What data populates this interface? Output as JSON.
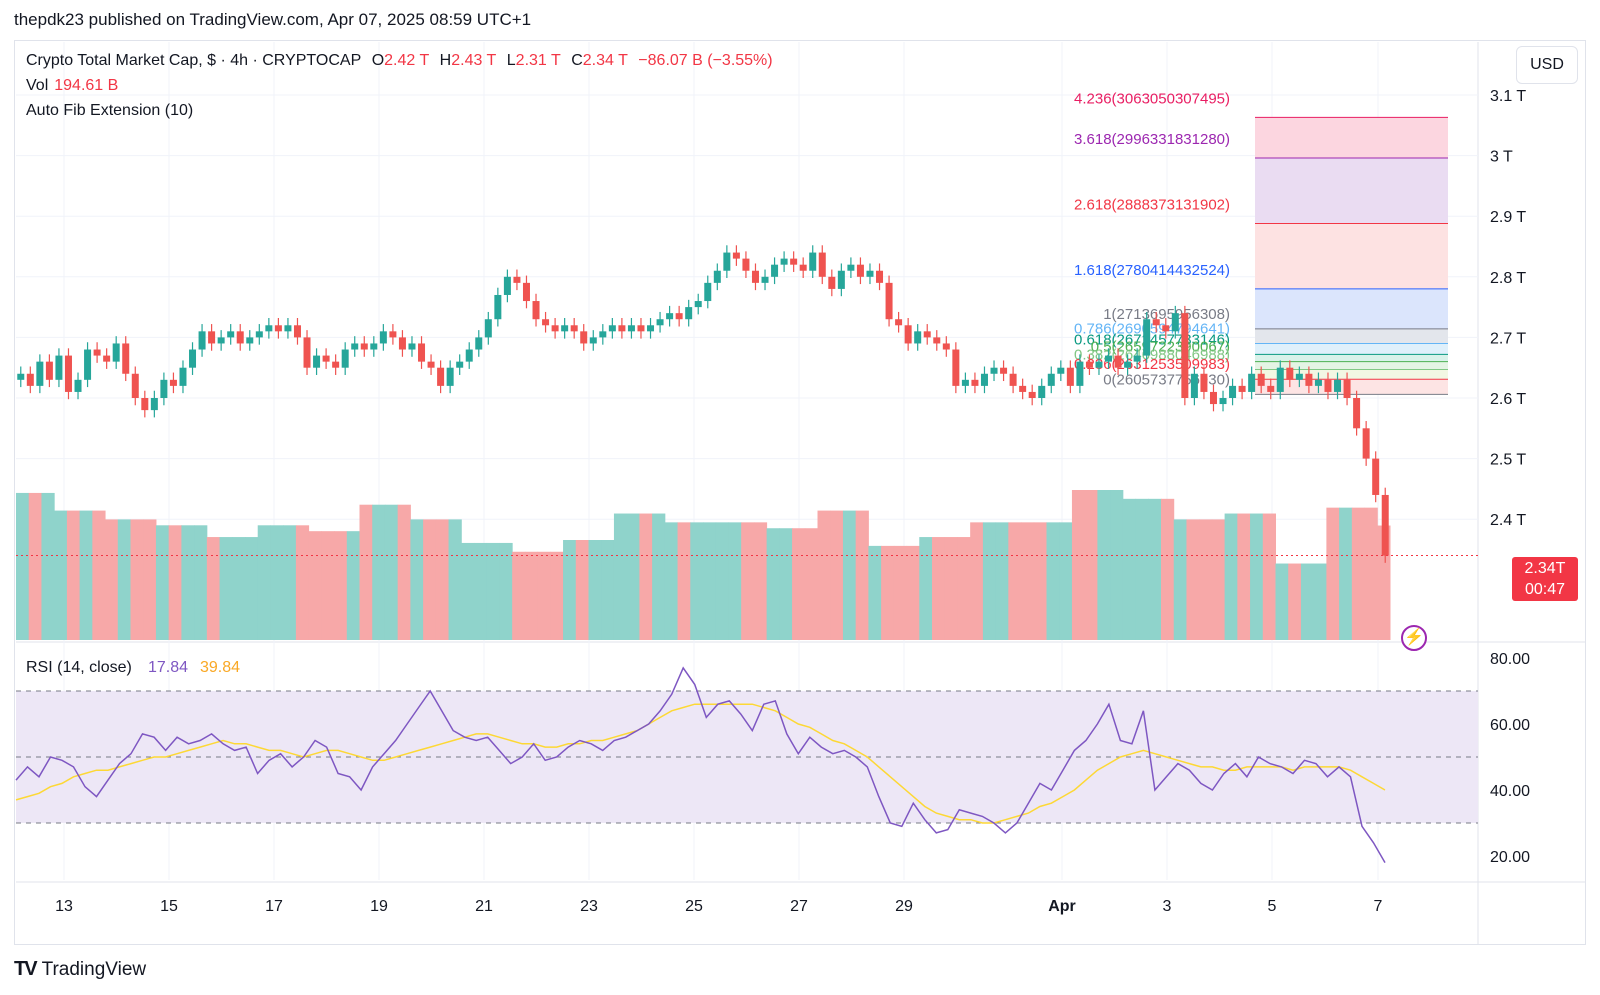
{
  "header": {
    "published": "thepdk23 published on TradingView.com, Apr 07, 2025 08:59 UTC+1",
    "symbol": "Crypto Total Market Cap, $ · 4h · CRYPTOCAP",
    "o_label": "O",
    "o": "2.42 T",
    "h_label": "H",
    "h": "2.43 T",
    "l_label": "L",
    "l": "2.31 T",
    "c_label": "C",
    "c": "2.34 T",
    "change": "−86.07 B (−3.55%)",
    "vol_label": "Vol",
    "vol": "194.61 B",
    "indicator": "Auto Fib Extension (10)"
  },
  "toolbar": {
    "currency": "USD"
  },
  "last_price": {
    "value": "2.34T",
    "countdown": "00:47"
  },
  "brand": {
    "name": "TradingView",
    "logo": "TV"
  },
  "colors": {
    "up": "#26a69a",
    "down": "#ef5350",
    "vol_up": "#8fd3cb",
    "vol_down": "#f7a8a8",
    "rsi": "#7e57c2",
    "rsi_ma": "#fdd835",
    "rsi_band": "#ede7f6"
  },
  "chart_data": {
    "type": "candlestick",
    "price_axis_ticks": [
      "3.1 T",
      "3 T",
      "2.9 T",
      "2.8 T",
      "2.7 T",
      "2.6 T",
      "2.5 T",
      "2.4 T"
    ],
    "price_ticks_values": [
      3.1,
      3.0,
      2.9,
      2.8,
      2.7,
      2.6,
      2.5,
      2.4
    ],
    "x_axis_ticks": [
      "13",
      "15",
      "17",
      "19",
      "21",
      "23",
      "25",
      "27",
      "29",
      "Apr",
      "3",
      "5",
      "7"
    ],
    "ohlc_close_series_T": [
      2.64,
      2.62,
      2.66,
      2.63,
      2.67,
      2.61,
      2.63,
      2.68,
      2.67,
      2.66,
      2.69,
      2.64,
      2.6,
      2.58,
      2.6,
      2.63,
      2.62,
      2.65,
      2.68,
      2.71,
      2.69,
      2.7,
      2.71,
      2.69,
      2.7,
      2.71,
      2.72,
      2.71,
      2.72,
      2.7,
      2.65,
      2.67,
      2.66,
      2.65,
      2.68,
      2.69,
      2.68,
      2.69,
      2.71,
      2.7,
      2.68,
      2.69,
      2.66,
      2.65,
      2.62,
      2.65,
      2.66,
      2.68,
      2.7,
      2.73,
      2.77,
      2.8,
      2.79,
      2.76,
      2.73,
      2.72,
      2.71,
      2.72,
      2.71,
      2.69,
      2.7,
      2.71,
      2.72,
      2.71,
      2.72,
      2.71,
      2.72,
      2.73,
      2.74,
      2.73,
      2.75,
      2.76,
      2.79,
      2.81,
      2.84,
      2.83,
      2.81,
      2.79,
      2.8,
      2.82,
      2.83,
      2.82,
      2.81,
      2.84,
      2.8,
      2.78,
      2.81,
      2.82,
      2.8,
      2.81,
      2.79,
      2.73,
      2.72,
      2.69,
      2.71,
      2.7,
      2.69,
      2.68,
      2.62,
      2.63,
      2.62,
      2.64,
      2.65,
      2.64,
      2.62,
      2.61,
      2.6,
      2.62,
      2.64,
      2.65,
      2.62,
      2.66,
      2.65,
      2.66,
      2.67,
      2.65,
      2.66,
      2.67,
      2.73,
      2.72,
      2.71,
      2.74,
      2.6,
      2.64,
      2.61,
      2.59,
      2.6,
      2.62,
      2.61,
      2.64,
      2.62,
      2.61,
      2.65,
      2.63,
      2.64,
      2.62,
      2.63,
      2.61,
      2.63,
      2.6,
      2.55,
      2.5,
      2.44,
      2.34
    ],
    "volume_bars_B": [
      250,
      250,
      250,
      220,
      220,
      220,
      220,
      205,
      205,
      205,
      205,
      195,
      195,
      195,
      195,
      175,
      175,
      175,
      175,
      195,
      195,
      195,
      195,
      185,
      185,
      185,
      185,
      230,
      230,
      230,
      230,
      205,
      205,
      205,
      205,
      165,
      165,
      165,
      165,
      150,
      150,
      150,
      150,
      170,
      170,
      170,
      170,
      215,
      215,
      215,
      215,
      200,
      200,
      200,
      200,
      200,
      200,
      200,
      200,
      190,
      190,
      190,
      190,
      220,
      220,
      220,
      220,
      160,
      160,
      160,
      160,
      175,
      175,
      175,
      175,
      200,
      200,
      200,
      200,
      200,
      200,
      200,
      200,
      255,
      255,
      255,
      255,
      240,
      240,
      240,
      240,
      205,
      205,
      205,
      205,
      215,
      215,
      215,
      215,
      130,
      130,
      130,
      130,
      225,
      225,
      225,
      225,
      194.61
    ],
    "fib_levels": [
      {
        "label": "4.236(3063050307495)",
        "value": 3.063,
        "color": "#e91e63"
      },
      {
        "label": "3.618(2996331831280)",
        "value": 2.996,
        "color": "#9c27b0"
      },
      {
        "label": "2.618(2888373131902)",
        "value": 2.888,
        "color": "#f23645"
      },
      {
        "label": "1.618(2780414432524)",
        "value": 2.78,
        "color": "#2962ff"
      },
      {
        "label": "1(2713695956308)",
        "value": 2.714,
        "color": "#787b86"
      },
      {
        "label": "0.786(2690594794641)",
        "value": 2.69,
        "color": "#64b5f6"
      },
      {
        "label": "0.618(2672457733146)",
        "value": 2.672,
        "color": "#089981"
      },
      {
        "label": "0.5(2659722390067)",
        "value": 2.66,
        "color": "#4caf50"
      },
      {
        "label": "0.382(2646988046988)",
        "value": 2.647,
        "color": "#81c784"
      },
      {
        "label": "0.236(2631253509983)",
        "value": 2.631,
        "color": "#f23645"
      },
      {
        "label": "0(2605737756930)",
        "value": 2.606,
        "color": "#787b86"
      }
    ],
    "rsi": {
      "label": "RSI (14, close)",
      "value": "17.84",
      "ma_value": "39.84",
      "axis_ticks": [
        "80.00",
        "60.00",
        "40.00",
        "20.00"
      ],
      "axis_values": [
        80,
        60,
        40,
        20
      ],
      "upper_band": 70,
      "middle": 50,
      "lower_band": 30,
      "series": [
        43,
        47,
        44,
        50,
        49,
        47,
        41,
        38,
        43,
        48,
        51,
        57,
        56,
        52,
        56,
        54,
        55,
        57,
        54,
        52,
        53,
        45,
        49,
        51,
        47,
        50,
        55,
        53,
        45,
        44,
        40,
        47,
        51,
        55,
        60,
        65,
        70,
        64,
        58,
        56,
        55,
        56,
        52,
        48,
        50,
        54,
        49,
        50,
        53,
        55,
        54,
        52,
        55,
        56,
        58,
        60,
        64,
        69,
        77,
        72,
        62,
        66,
        67,
        63,
        58,
        66,
        67,
        57,
        51,
        56,
        53,
        51,
        52,
        50,
        47,
        38,
        30,
        29,
        36,
        31,
        27,
        28,
        34,
        33,
        32,
        30,
        27,
        30,
        36,
        42,
        40,
        46,
        52,
        55,
        60,
        66,
        55,
        54,
        64,
        40,
        44,
        48,
        46,
        42,
        40,
        45,
        48,
        44,
        50,
        48,
        47,
        45,
        49,
        48,
        44,
        47,
        44,
        29,
        24,
        18
      ],
      "ma_series": [
        37,
        38,
        39,
        41,
        42,
        44,
        45,
        46,
        46,
        47,
        48,
        49,
        50,
        50,
        51,
        52,
        53,
        54,
        55,
        54,
        54,
        53,
        52,
        52,
        51,
        50,
        51,
        52,
        52,
        51,
        50,
        49,
        49,
        50,
        51,
        52,
        53,
        54,
        55,
        56,
        57,
        57,
        56,
        55,
        54,
        54,
        53,
        53,
        54,
        54,
        55,
        55,
        56,
        57,
        58,
        60,
        62,
        64,
        65,
        66,
        66,
        66,
        66,
        66,
        66,
        65,
        64,
        62,
        60,
        59,
        57,
        55,
        54,
        52,
        50,
        47,
        44,
        41,
        38,
        35,
        33,
        32,
        31,
        31,
        30,
        30,
        31,
        32,
        33,
        35,
        36,
        38,
        40,
        43,
        46,
        48,
        50,
        51,
        52,
        51,
        50,
        49,
        48,
        47,
        47,
        46,
        46,
        47,
        47,
        47,
        47,
        46,
        47,
        47,
        47,
        47,
        46,
        44,
        42,
        40
      ]
    }
  }
}
